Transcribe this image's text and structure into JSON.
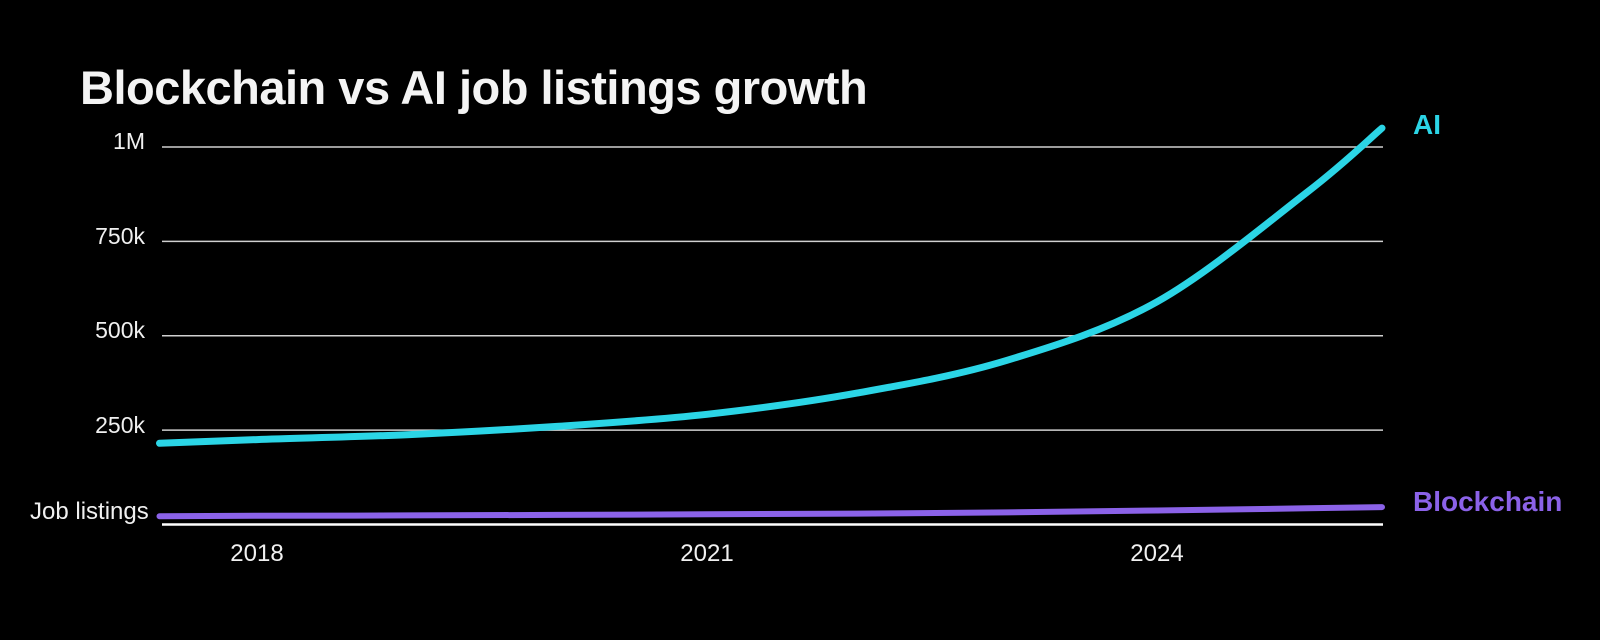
{
  "chart_data": {
    "type": "line",
    "title": "Blockchain vs AI job listings growth",
    "xlabel": "",
    "ylabel": "Job listings",
    "grid": "horizontal",
    "legend_position": "line-end-labels-right",
    "background_color": "#000000",
    "gridline_color": "#d0d0d0",
    "baseline_color": "#ffffff",
    "text_color": "#f0f0f0",
    "x_axis": {
      "ticks": [
        2018,
        2021,
        2024
      ],
      "range": [
        2017.35,
        2025.5
      ]
    },
    "y_axis": {
      "caption": "Job listings",
      "range": [
        0,
        1050000
      ],
      "ticks": [
        {
          "label": "1M",
          "value": 1000000
        },
        {
          "label": "750k",
          "value": 750000
        },
        {
          "label": "500k",
          "value": 500000
        },
        {
          "label": "250k",
          "value": 250000
        }
      ]
    },
    "series": [
      {
        "name": "AI",
        "color": "#2bd5e6",
        "stroke_width": 7,
        "points": [
          [
            2017.35,
            215000
          ],
          [
            2018,
            225000
          ],
          [
            2019,
            238000
          ],
          [
            2020,
            260000
          ],
          [
            2021,
            292000
          ],
          [
            2022,
            348000
          ],
          [
            2023,
            435000
          ],
          [
            2024,
            590000
          ],
          [
            2025,
            880000
          ],
          [
            2025.5,
            1050000
          ]
        ]
      },
      {
        "name": "Blockchain",
        "color": "#8b62e8",
        "stroke_width": 6,
        "points": [
          [
            2017.35,
            22000
          ],
          [
            2018,
            23000
          ],
          [
            2019,
            24000
          ],
          [
            2020,
            25500
          ],
          [
            2021,
            27000
          ],
          [
            2022,
            29000
          ],
          [
            2023,
            32000
          ],
          [
            2024,
            37000
          ],
          [
            2025,
            43000
          ],
          [
            2025.5,
            46000
          ]
        ]
      }
    ]
  }
}
